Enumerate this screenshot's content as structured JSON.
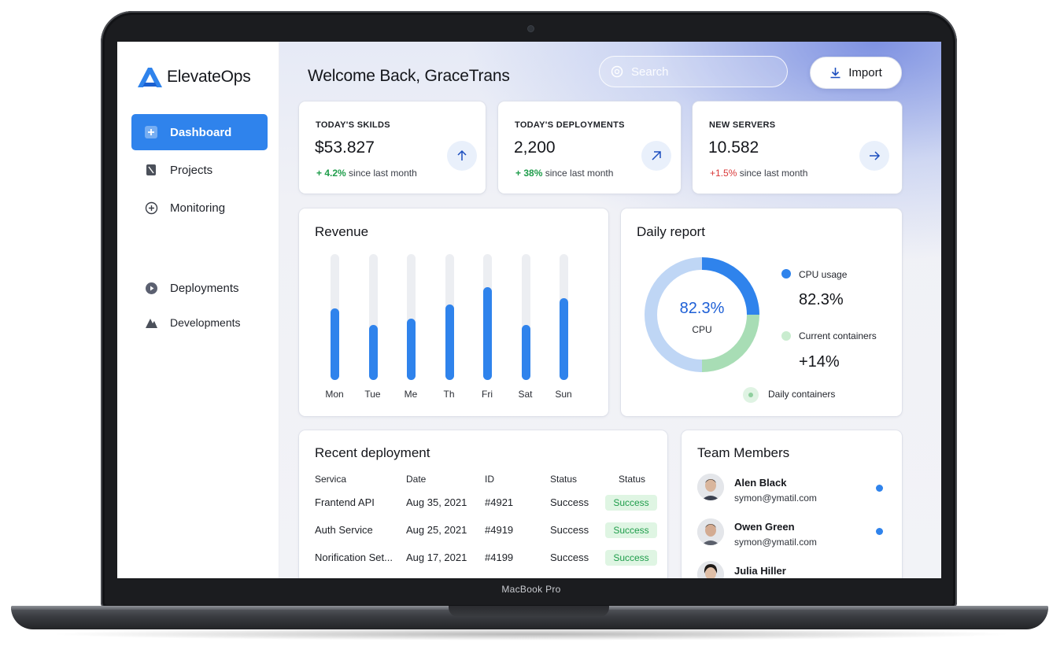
{
  "device": {
    "label": "MacBook Pro"
  },
  "app": {
    "name": "ElevateOps",
    "brand_color": "#2f83ec"
  },
  "sidebar": {
    "items": [
      {
        "label": "Dashboard",
        "icon": "dashboard-icon",
        "active": true
      },
      {
        "label": "Projects",
        "icon": "projects-icon",
        "active": false
      },
      {
        "label": "Monitoring",
        "icon": "monitoring-icon",
        "active": false
      },
      {
        "label": "Deployments",
        "icon": "deployments-icon",
        "active": false
      },
      {
        "label": "Developments",
        "icon": "developments-icon",
        "active": false
      }
    ]
  },
  "header": {
    "welcome": "Welcome Back, GraceTrans",
    "search_placeholder": "Search",
    "import_label": "Import"
  },
  "stats": [
    {
      "label": "TODAY'S SKILDS",
      "value": "$53.827",
      "change": "+ 4.2%",
      "change_suffix": " since last month",
      "trend": "up",
      "arrow_icon": "arrow-up-icon"
    },
    {
      "label": "TODAY'S DEPLOYMENTS",
      "value": "2,200",
      "change": "+ 38%",
      "change_suffix": " since last month",
      "trend": "up",
      "arrow_icon": "arrow-up-right-icon"
    },
    {
      "label": "NEW SERVERS",
      "value": "10.582",
      "change": "+1.5%",
      "change_suffix": " since last month",
      "trend": "down",
      "arrow_icon": "arrow-right-icon"
    }
  ],
  "revenue": {
    "title": "Revenue",
    "chart_data": {
      "type": "bar",
      "categories": [
        "Mon",
        "Tue",
        "Me",
        "Th",
        "Fri",
        "Sat",
        "Sun"
      ],
      "values": [
        57,
        44,
        49,
        60,
        74,
        44,
        65
      ],
      "ylim": [
        0,
        100
      ]
    }
  },
  "daily_report": {
    "title": "Daily report",
    "center_value": "82.3%",
    "center_label": "CPU",
    "legend": [
      {
        "label": "CPU usage",
        "value": "82.3%",
        "color": "#2f83ec"
      },
      {
        "label": "Current containers",
        "value": "+14%",
        "color": "#bfe8c8"
      },
      {
        "label": "Daily containers",
        "value": "",
        "color": "#8fcf9e"
      }
    ],
    "chart_data": {
      "type": "pie",
      "labels": [
        "CPU usage",
        "Current containers",
        "Daily containers"
      ],
      "values": [
        25,
        25,
        50
      ]
    }
  },
  "recent_deployment": {
    "title": "Recent deployment",
    "columns": [
      "Servica",
      "Date",
      "ID",
      "Status",
      "Status"
    ],
    "rows": [
      {
        "service": "Frantend API",
        "date": "Aug 35, 2021",
        "id": "#4921",
        "status": "Success",
        "badge": "Success"
      },
      {
        "service": "Auth Service",
        "date": "Aug 25, 2021",
        "id": "#4919",
        "status": "Success",
        "badge": "Success"
      },
      {
        "service": "Norification Set...",
        "date": "Aug 17, 2021",
        "id": "#4199",
        "status": "Success",
        "badge": "Success"
      }
    ]
  },
  "team": {
    "title": "Team Members",
    "members": [
      {
        "name": "Alen Black",
        "email": "symon@ymatil.com",
        "online": true
      },
      {
        "name": "Owen Green",
        "email": "symon@ymatil.com",
        "online": true
      },
      {
        "name": "Julia Hiller",
        "email": "",
        "online": false
      }
    ]
  }
}
